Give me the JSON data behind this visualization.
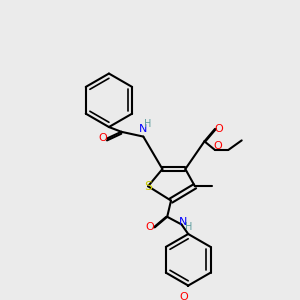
{
  "bg_color": "#ebebeb",
  "atom_colors": {
    "C": "#000000",
    "H": "#5f9ea0",
    "N": "#0000ff",
    "O": "#ff0000",
    "S": "#cccc00"
  },
  "bond_color": "#000000",
  "figure_size": [
    3.0,
    3.0
  ],
  "dpi": 100
}
